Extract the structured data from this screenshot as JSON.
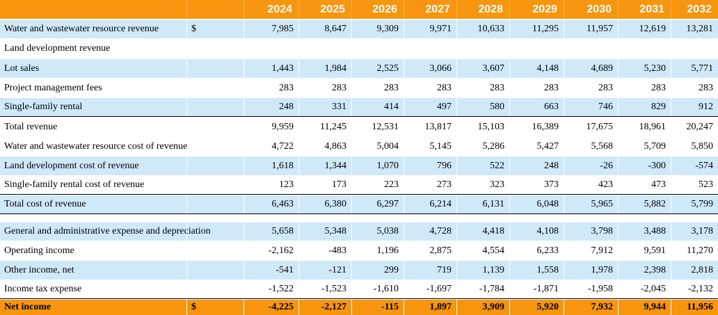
{
  "years": [
    "2024",
    "2025",
    "2026",
    "2027",
    "2028",
    "2029",
    "2030",
    "2031",
    "2032"
  ],
  "rows": [
    {
      "label": "Water and wastewater resource revenue",
      "currency": "$",
      "values": [
        "7,985",
        "8,647",
        "9,309",
        "9,971",
        "10,633",
        "11,295",
        "11,957",
        "12,619",
        "13,281"
      ]
    },
    {
      "label": "Land development revenue",
      "currency": "",
      "values": [
        "",
        "",
        "",
        "",
        "",
        "",
        "",
        "",
        ""
      ]
    },
    {
      "label": "Lot sales",
      "currency": "",
      "values": [
        "1,443",
        "1,984",
        "2,525",
        "3,066",
        "3,607",
        "4,148",
        "4,689",
        "5,230",
        "5,771"
      ]
    },
    {
      "label": "Project management fees",
      "currency": "",
      "values": [
        "283",
        "283",
        "283",
        "283",
        "283",
        "283",
        "283",
        "283",
        "283"
      ]
    },
    {
      "label": "Single-family rental",
      "currency": "",
      "values": [
        "248",
        "331",
        "414",
        "497",
        "580",
        "663",
        "746",
        "829",
        "912"
      ]
    },
    {
      "label": "Total revenue",
      "currency": "",
      "values": [
        "9,959",
        "11,245",
        "12,531",
        "13,817",
        "15,103",
        "16,389",
        "17,675",
        "18,961",
        "20,247"
      ]
    },
    {
      "label": "Water and wastewater resource cost of revenue",
      "currency": "",
      "values": [
        "4,722",
        "4,863",
        "5,004",
        "5,145",
        "5,286",
        "5,427",
        "5,568",
        "5,709",
        "5,850"
      ]
    },
    {
      "label": "Land development cost of revenue",
      "currency": "",
      "values": [
        "1,618",
        "1,344",
        "1,070",
        "796",
        "522",
        "248",
        "-26",
        "-300",
        "-574"
      ]
    },
    {
      "label": "Single-family rental cost of revenue",
      "currency": "",
      "values": [
        "123",
        "173",
        "223",
        "273",
        "323",
        "373",
        "423",
        "473",
        "523"
      ]
    },
    {
      "label": "Total cost of revenue",
      "currency": "",
      "values": [
        "6,463",
        "6,380",
        "6,297",
        "6,214",
        "6,131",
        "6,048",
        "5,965",
        "5,882",
        "5,799"
      ]
    },
    {
      "label": "",
      "currency": "",
      "values": [
        "",
        "",
        "",
        "",
        "",
        "",
        "",
        "",
        ""
      ]
    },
    {
      "label": "General and administrative expense and depreciation",
      "currency": "",
      "values": [
        "5,658",
        "5,348",
        "5,038",
        "4,728",
        "4,418",
        "4,108",
        "3,798",
        "3,488",
        "3,178"
      ]
    },
    {
      "label": "Operating income",
      "currency": "",
      "values": [
        "-2,162",
        "-483",
        "1,196",
        "2,875",
        "4,554",
        "6,233",
        "7,912",
        "9,591",
        "11,270"
      ]
    },
    {
      "label": "Other income, net",
      "currency": "",
      "values": [
        "-541",
        "-121",
        "299",
        "719",
        "1,139",
        "1,558",
        "1,978",
        "2,398",
        "2,818"
      ]
    },
    {
      "label": "Income tax expense",
      "currency": "",
      "values": [
        "-1,522",
        "-1,523",
        "-1,610",
        "-1,697",
        "-1,784",
        "-1,871",
        "-1,958",
        "-2,045",
        "-2,132"
      ]
    },
    {
      "label": "Net income",
      "currency": "$",
      "values": [
        "-4,225",
        "-2,127",
        "-115",
        "1,897",
        "3,909",
        "5,920",
        "7,932",
        "9,944",
        "11,956"
      ]
    }
  ],
  "colors": {
    "header": "#f7950f",
    "band": "#cfe9f9",
    "white": "#ffffff"
  }
}
